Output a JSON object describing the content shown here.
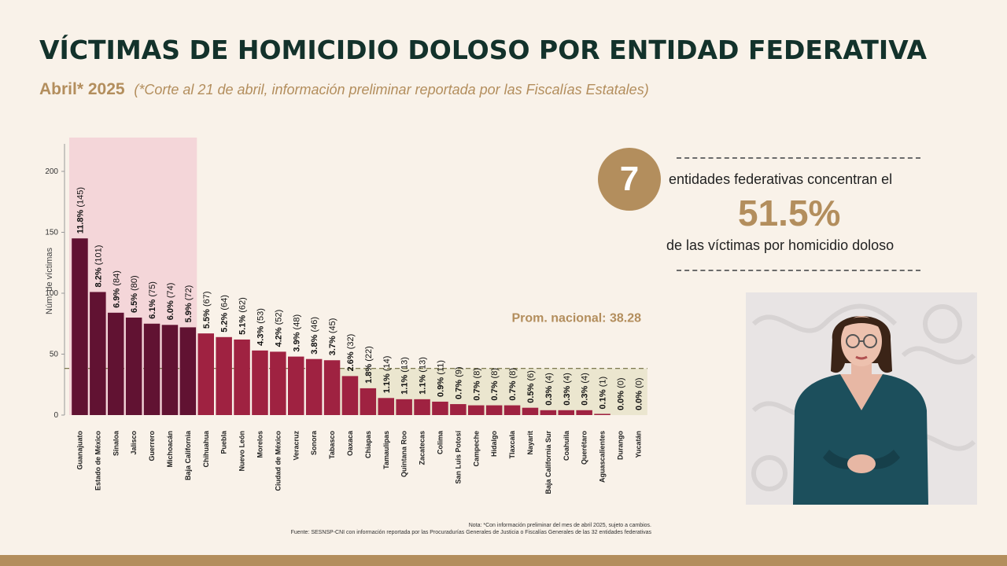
{
  "header": {
    "title": "VÍCTIMAS DE HOMICIDIO DOLOSO POR ENTIDAD FEDERATIVA",
    "year": "Abril* 2025",
    "note": "(*Corte al 21 de abril, información preliminar reportada por las Fiscalías Estatales)"
  },
  "stat": {
    "count": "7",
    "line1": "entidades federativas concentran el",
    "percent": "51.5%",
    "line2": "de las víctimas por homicidio doloso"
  },
  "footer": {
    "note": "Nota: *Con información preliminar del mes de abril 2025, sujeto a cambios.",
    "source": "Fuente: SESNSP-CNI con información reportada por las Procuradurías Generales de Justicia o Fiscalías Generales de las 32 entidades federativas"
  },
  "colors": {
    "title": "#13322b",
    "accent": "#b38e5d",
    "top_bar": "#611232",
    "bar": "#9f2241",
    "top_band": "#f4d6d9",
    "below_avg_band": "#ebe6cf"
  },
  "chart_data": {
    "type": "bar",
    "title": "",
    "xlabel": "",
    "ylabel": "Núm. de víctimas",
    "ylim": [
      0,
      230
    ],
    "yticks": [
      0,
      50,
      100,
      150,
      200
    ],
    "grid": false,
    "categories": [
      "Guanajuato",
      "Estado de México",
      "Sinaloa",
      "Jalisco",
      "Guerrero",
      "Michoacán",
      "Baja California",
      "Chihuahua",
      "Puebla",
      "Nuevo León",
      "Morelos",
      "Ciudad de México",
      "Veracruz",
      "Sonora",
      "Tabasco",
      "Oaxaca",
      "Chiapas",
      "Tamaulipas",
      "Quintana Roo",
      "Zacatecas",
      "Colima",
      "San Luis Potosí",
      "Campeche",
      "Hidalgo",
      "Tlaxcala",
      "Nayarit",
      "Baja California Sur",
      "Coahuila",
      "Querétaro",
      "Aguascalientes",
      "Durango",
      "Yucatán"
    ],
    "values": [
      145,
      101,
      84,
      80,
      75,
      74,
      72,
      67,
      64,
      62,
      53,
      52,
      48,
      46,
      45,
      32,
      22,
      14,
      13,
      13,
      11,
      9,
      8,
      8,
      8,
      6,
      4,
      4,
      4,
      1,
      0,
      0
    ],
    "percents": [
      "11.8%",
      "8.2%",
      "6.9%",
      "6.5%",
      "6.1%",
      "6.0%",
      "5.9%",
      "5.5%",
      "5.2%",
      "5.1%",
      "4.3%",
      "4.2%",
      "3.9%",
      "3.8%",
      "3.7%",
      "2.6%",
      "1.8%",
      "1.1%",
      "1.1%",
      "1.1%",
      "0.9%",
      "0.7%",
      "0.7%",
      "0.7%",
      "0.7%",
      "0.5%",
      "0.3%",
      "0.3%",
      "0.3%",
      "0.1%",
      "0.0%",
      "0.0%"
    ],
    "top_count": 7,
    "average": 38.28,
    "average_label": "Prom. nacional: 38.28"
  }
}
